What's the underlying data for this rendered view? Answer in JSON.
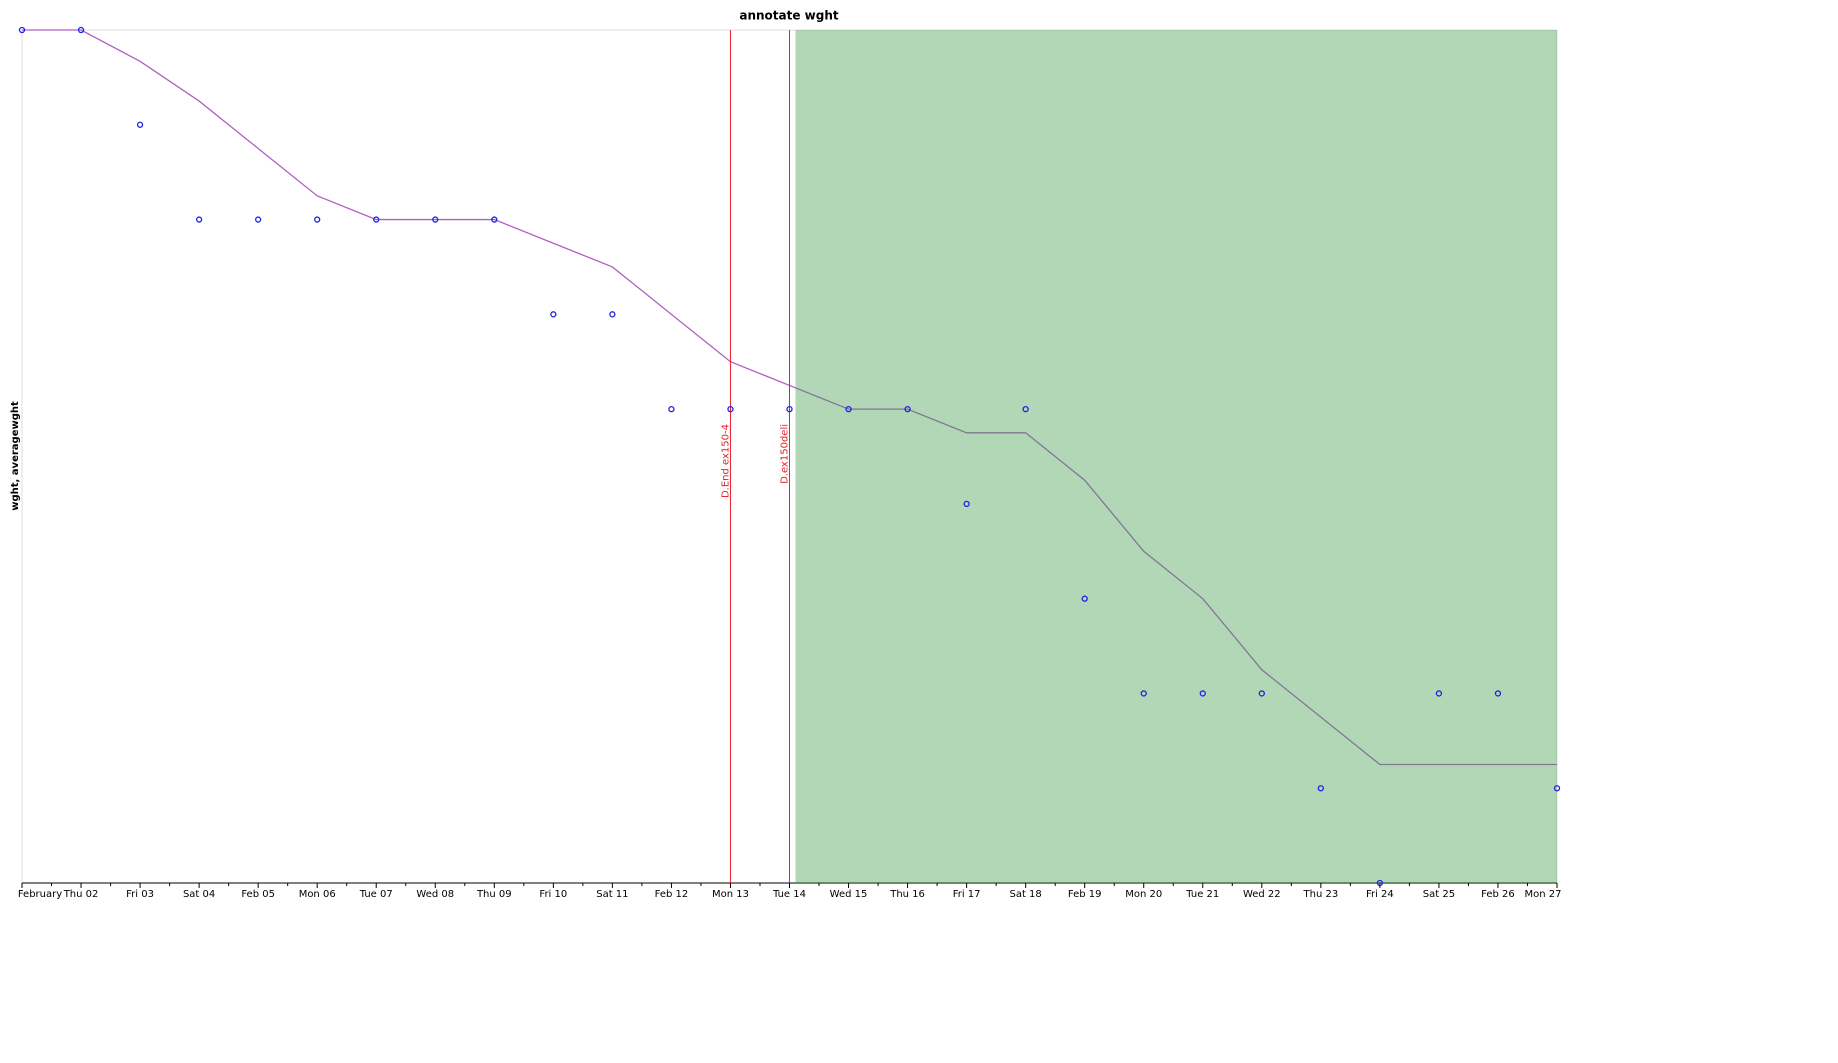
{
  "chart_data": {
    "type": "line",
    "title": "annotate wght",
    "y_label": "wght, averagewght",
    "categories": [
      "February",
      "Thu 02",
      "Fri 03",
      "Sat 04",
      "Feb 05",
      "Mon 06",
      "Tue 07",
      "Wed 08",
      "Thu 09",
      "Fri 10",
      "Sat 11",
      "Feb 12",
      "Mon 13",
      "Tue 14",
      "Wed 15",
      "Thu 16",
      "Fri 17",
      "Sat 18",
      "Feb 19",
      "Mon 20",
      "Tue 21",
      "Wed 22",
      "Thu 23",
      "Fri 24",
      "Sat 25",
      "Feb 26",
      "Mon 27"
    ],
    "series": [
      {
        "name": "wght",
        "mode": "markers",
        "color": "#2020e0",
        "values": [
          9,
          9,
          8,
          7,
          7,
          7,
          7,
          7,
          7,
          6,
          6,
          5,
          5,
          5,
          5,
          5,
          4,
          5,
          3,
          2,
          2,
          2,
          1,
          0,
          2,
          2,
          1
        ]
      },
      {
        "name": "averagewght",
        "mode": "lines",
        "color": "#b060c0",
        "values": [
          9,
          9,
          8.67,
          8.25,
          7.75,
          7.25,
          7,
          7,
          7,
          6.75,
          6.5,
          6,
          5.5,
          5.25,
          5,
          5,
          4.75,
          4.75,
          4.25,
          3.5,
          3,
          2.25,
          1.75,
          1.25,
          1.25,
          1.25,
          1.25
        ]
      }
    ],
    "ylim": [
      0,
      9
    ],
    "annotations": [
      {
        "category": "Mon 13",
        "label": "D.End ex150-4",
        "color": "#e8202a"
      },
      {
        "category": "Tue 14",
        "label": "D.ex150deli",
        "color": "#e8202a"
      }
    ],
    "shaded_span": {
      "from": "Tue 14",
      "to": "Mon 27",
      "color": "#3c9a4c"
    }
  }
}
